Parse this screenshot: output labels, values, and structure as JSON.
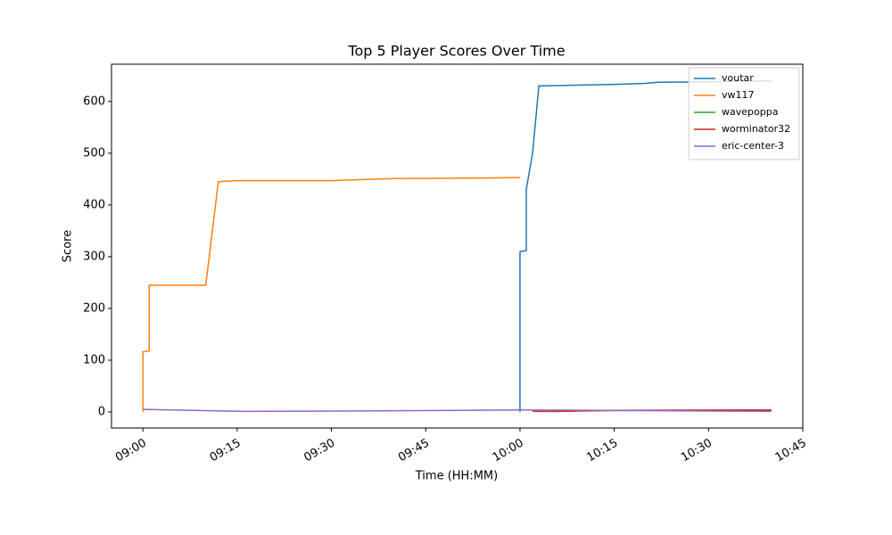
{
  "chart_data": {
    "type": "line",
    "title": "Top 5 Player Scores Over Time",
    "x_label": "Time (HH:MM)",
    "y_label": "Score",
    "xlim": [
      "08:55",
      "10:45"
    ],
    "ylim": [
      -31,
      672
    ],
    "xticks": [
      "09:00",
      "09:15",
      "09:30",
      "09:45",
      "10:00",
      "10:15",
      "10:30",
      "10:45"
    ],
    "yticks": [
      0,
      100,
      200,
      300,
      400,
      500,
      600
    ],
    "legend": "upper right",
    "series": [
      {
        "name": "voutar",
        "color": "#1f77b4",
        "x": [
          "10:00",
          "10:00",
          "10:00",
          "10:01",
          "10:01",
          "10:01",
          "10:02",
          "10:03",
          "10:15",
          "10:20",
          "10:22",
          "10:30",
          "10:40"
        ],
        "values": [
          0,
          170,
          310,
          312,
          360,
          430,
          500,
          630,
          633,
          635,
          637,
          638,
          640
        ]
      },
      {
        "name": "vw117",
        "color": "#ff7f0e",
        "x": [
          "09:00",
          "09:00",
          "09:01",
          "09:01",
          "09:01",
          "09:10",
          "09:12",
          "09:15",
          "09:30",
          "09:35",
          "09:40",
          "09:55",
          "10:00"
        ],
        "values": [
          0,
          116,
          118,
          165,
          245,
          245,
          445,
          447,
          447,
          449,
          451,
          452,
          453
        ]
      },
      {
        "name": "wavepoppa",
        "color": "#2ca02c",
        "x": [
          "10:05",
          "10:20",
          "10:40"
        ],
        "values": [
          2,
          3,
          3
        ]
      },
      {
        "name": "worminator32",
        "color": "#d62728",
        "x": [
          "10:02",
          "10:06",
          "10:15",
          "10:35",
          "10:40"
        ],
        "values": [
          1,
          1,
          3,
          4,
          4
        ]
      },
      {
        "name": "eric-center-3",
        "color": "#9467bd",
        "x": [
          "09:00",
          "09:16",
          "09:35",
          "09:50",
          "10:00",
          "10:40"
        ],
        "values": [
          5,
          1,
          2,
          3,
          4,
          1
        ]
      }
    ]
  }
}
